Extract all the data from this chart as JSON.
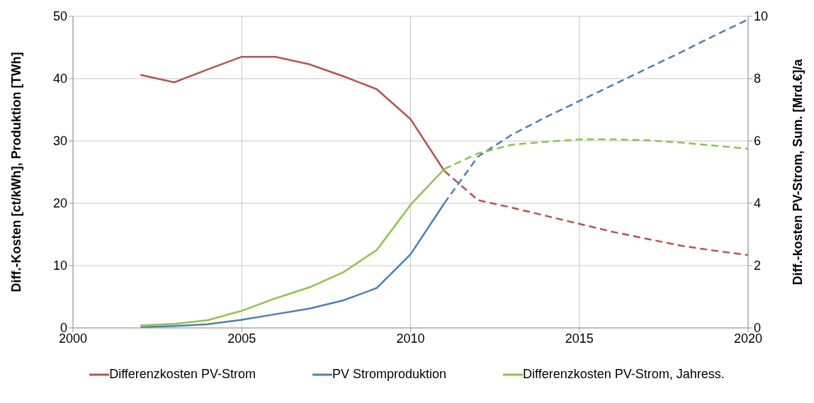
{
  "chart_data": {
    "type": "line",
    "ylabel": "Diff.-Kosten [ct/kWh], Produktion [TWh]",
    "y2label": "Diff.-kosten PV-Strom, Sum. [Mrd.€]/a",
    "xlim": [
      2000,
      2020
    ],
    "xticks": [
      2000,
      2005,
      2010,
      2015,
      2020
    ],
    "ylim": [
      0,
      50
    ],
    "yticks": [
      0,
      10,
      20,
      30,
      40,
      50
    ],
    "y2lim": [
      0,
      10
    ],
    "y2ticks": [
      0,
      2,
      4,
      6,
      8,
      10
    ],
    "grid": true,
    "legend": "bottom",
    "marker": "none",
    "series": [
      {
        "name": "Differenzkosten PV-Strom",
        "color": "#c0504d",
        "line_style": "solid",
        "x": [
          2002,
          2003,
          2004,
          2005,
          2006,
          2007,
          2008,
          2009,
          2010,
          2011
        ],
        "values": [
          40.6,
          39.4,
          41.5,
          43.5,
          43.5,
          42.3,
          40.4,
          38.3,
          33.5,
          25.2
        ]
      },
      {
        "color": "#c0504d",
        "line_style": "dashed",
        "x": [
          2011,
          2012,
          2013,
          2014,
          2015,
          2016,
          2017,
          2018,
          2019,
          2020
        ],
        "values": [
          25.2,
          20.5,
          19.3,
          18,
          16.7,
          15.4,
          14.3,
          13.2,
          12.4,
          11.7
        ]
      },
      {
        "name": "PV Stromproduktion",
        "color": "#4a7ebb",
        "line_style": "solid",
        "x": [
          2002,
          2003,
          2004,
          2005,
          2006,
          2007,
          2008,
          2009,
          2010,
          2011
        ],
        "values": [
          0.1,
          0.3,
          0.6,
          1.3,
          2.2,
          3.1,
          4.4,
          6.4,
          11.8,
          20
        ]
      },
      {
        "color": "#4a7ebb",
        "line_style": "dashed",
        "x": [
          2011,
          2012,
          2013,
          2014,
          2015,
          2016,
          2017,
          2018,
          2019,
          2020
        ],
        "values": [
          20,
          27.5,
          31,
          33.8,
          36.4,
          39,
          41.6,
          44.2,
          46.9,
          49.5
        ]
      },
      {
        "name": "Differenzkosten PV-Strom, Jahress.",
        "color": "#8cc63f",
        "line_style": "solid",
        "axis": "y2",
        "x": [
          2002,
          2003,
          2004,
          2005,
          2006,
          2007,
          2008,
          2009,
          2010,
          2011
        ],
        "values": [
          0.08,
          0.13,
          0.25,
          0.55,
          0.95,
          1.3,
          1.78,
          2.5,
          3.95,
          5.1
        ]
      },
      {
        "color": "#8cc63f",
        "line_style": "dashed",
        "axis": "y2",
        "x": [
          2011,
          2012,
          2013,
          2014,
          2015,
          2016,
          2017,
          2018,
          2019,
          2020
        ],
        "values": [
          5.1,
          5.6,
          5.88,
          5.97,
          6.05,
          6.05,
          6.02,
          5.95,
          5.85,
          5.75
        ]
      }
    ]
  }
}
